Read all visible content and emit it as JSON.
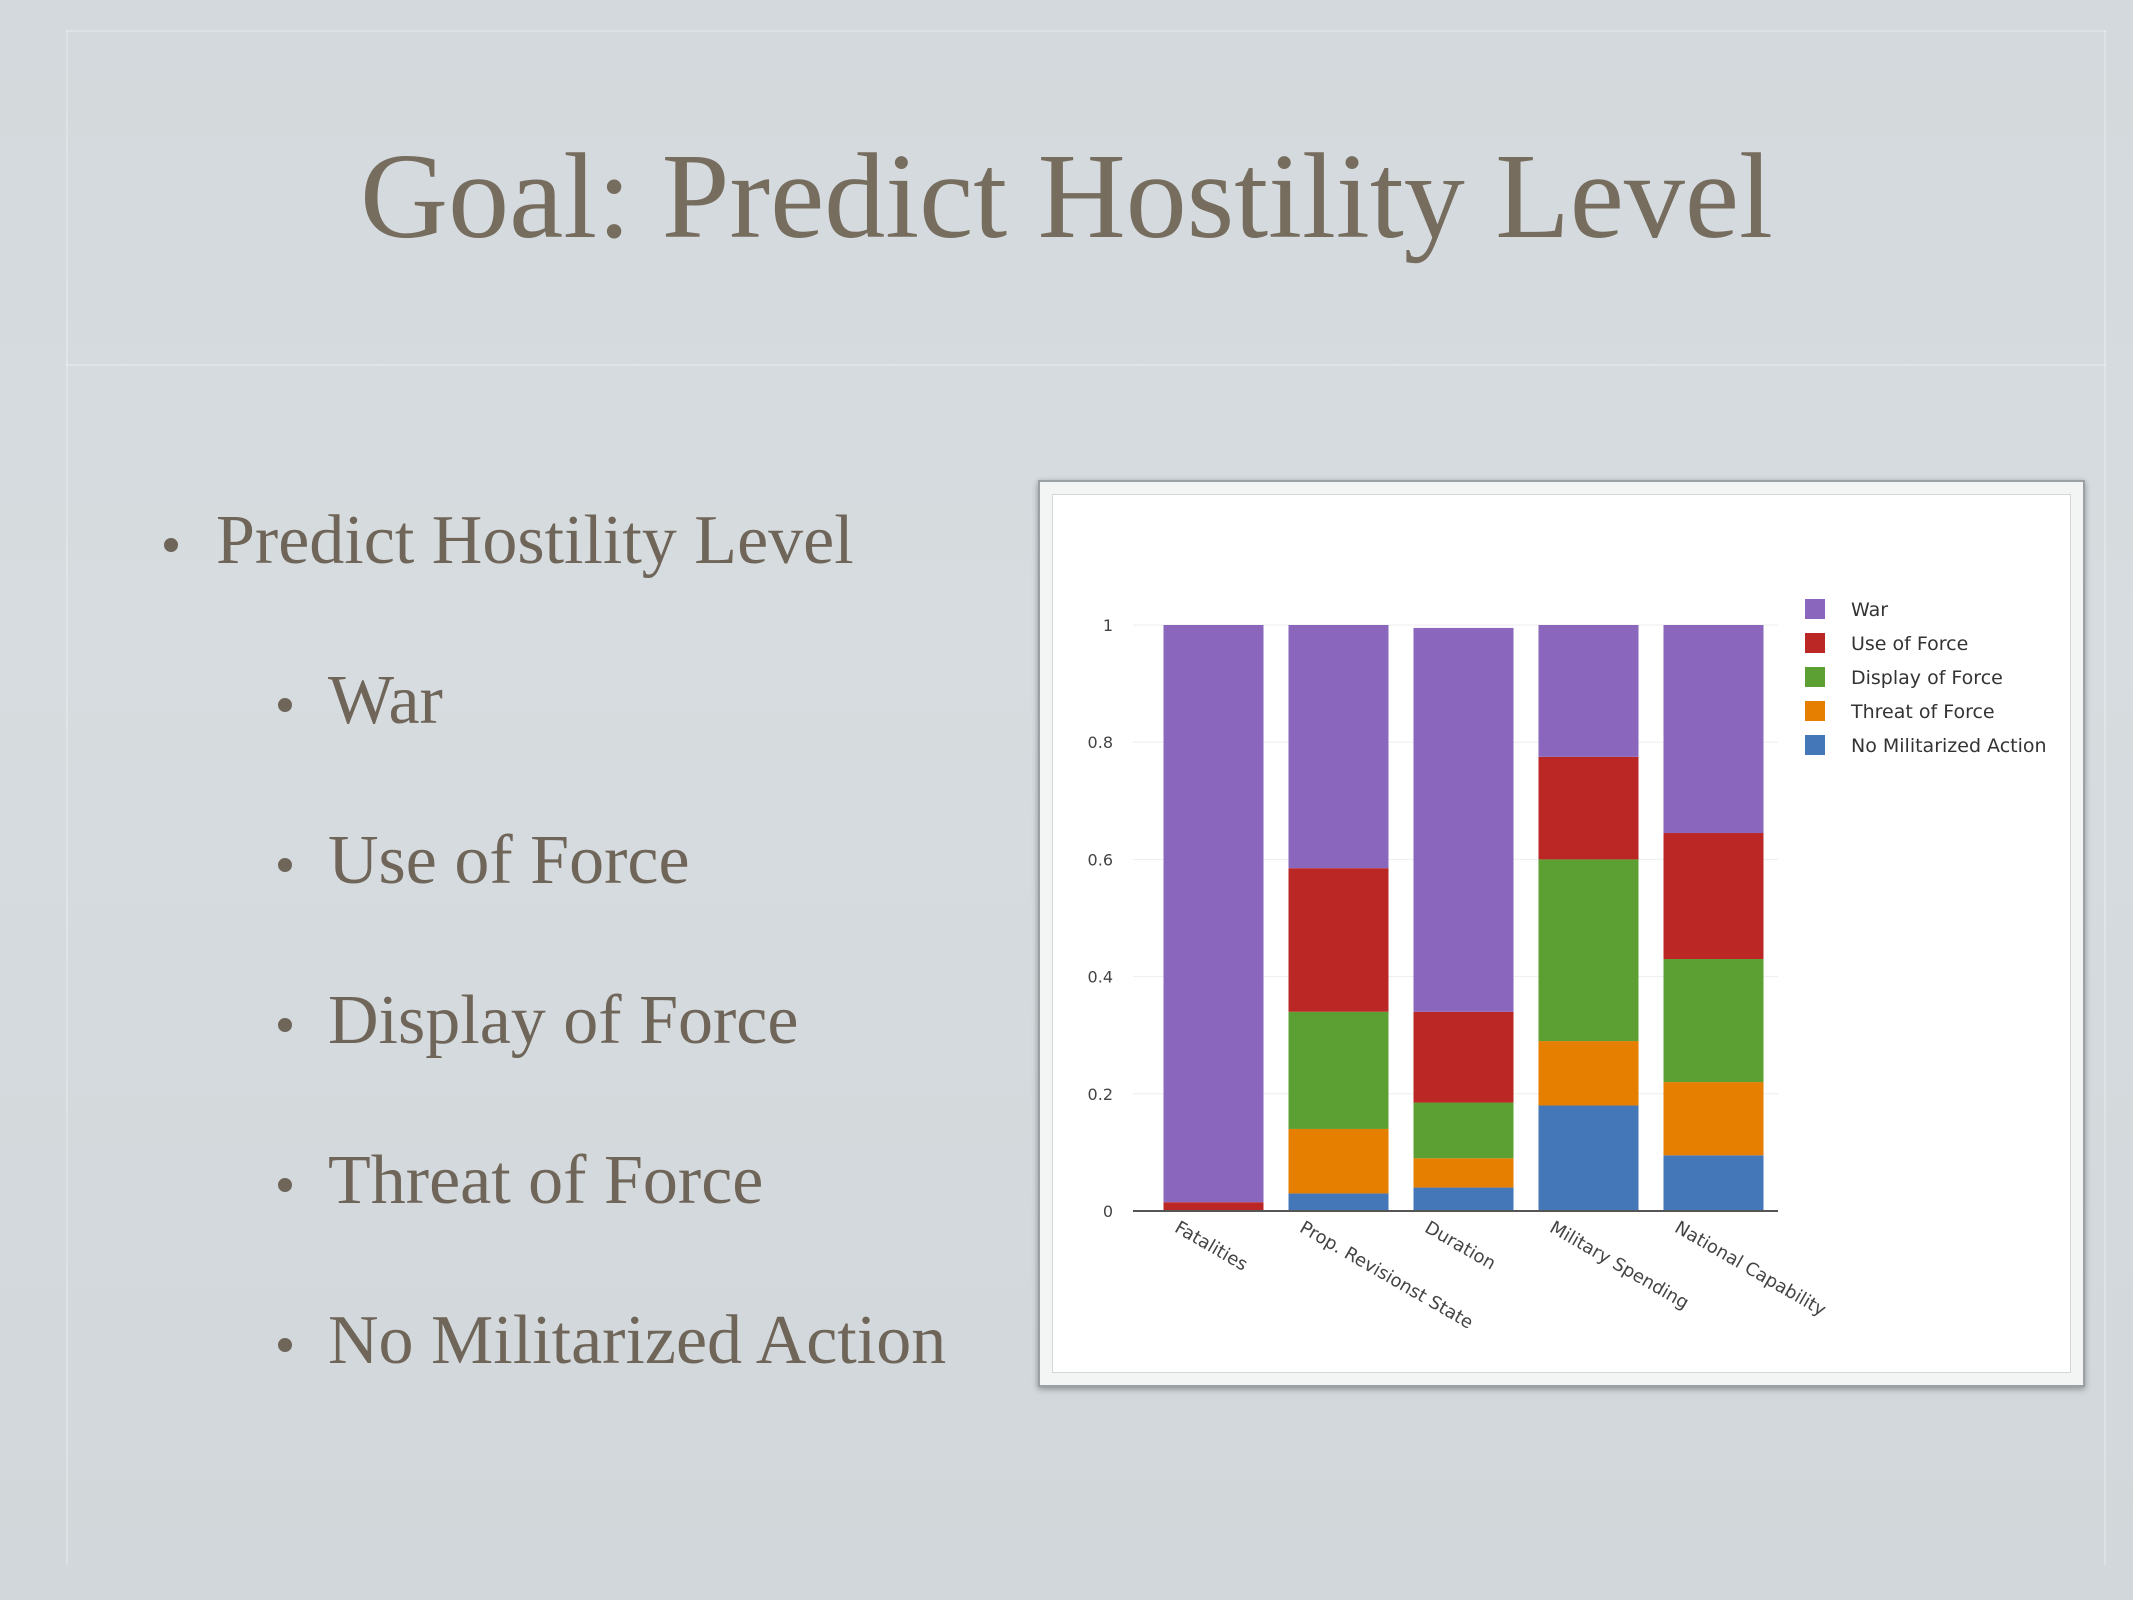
{
  "slide": {
    "title": "Goal: Predict Hostility Level",
    "bullets": [
      {
        "text": "Predict Hostility Level",
        "level": 1
      },
      {
        "text": "War",
        "level": 2
      },
      {
        "text": "Use of Force",
        "level": 2
      },
      {
        "text": "Display of Force",
        "level": 2
      },
      {
        "text": "Threat of Force",
        "level": 2
      },
      {
        "text": "No Militarized Action",
        "level": 2
      }
    ]
  },
  "chart_data": {
    "type": "bar",
    "stacked": true,
    "categories": [
      "Fatalities",
      "Prop. Revisionst State",
      "Duration",
      "Military Spending",
      "National Capability"
    ],
    "series": [
      {
        "name": "No Militarized Action",
        "color": "#4477b8",
        "values": [
          0.0,
          0.03,
          0.04,
          0.18,
          0.095
        ]
      },
      {
        "name": "Threat of Force",
        "color": "#e67e00",
        "values": [
          0.0,
          0.11,
          0.05,
          0.11,
          0.125
        ]
      },
      {
        "name": "Display of Force",
        "color": "#5ca033",
        "values": [
          0.0,
          0.2,
          0.095,
          0.31,
          0.21
        ]
      },
      {
        "name": "Use of Force",
        "color": "#ba2725",
        "values": [
          0.015,
          0.245,
          0.155,
          0.175,
          0.215
        ]
      },
      {
        "name": "War",
        "color": "#8a66bc",
        "values": [
          0.985,
          0.415,
          0.655,
          0.225,
          0.355
        ]
      }
    ],
    "legend_order": [
      "War",
      "Use of Force",
      "Display of Force",
      "Threat of Force",
      "No Militarized Action"
    ],
    "yticks": [
      "0",
      "0.2",
      "0.4",
      "0.6",
      "0.8",
      "1"
    ],
    "ylim": [
      0,
      1
    ],
    "legend_position": "right",
    "grid": true
  }
}
